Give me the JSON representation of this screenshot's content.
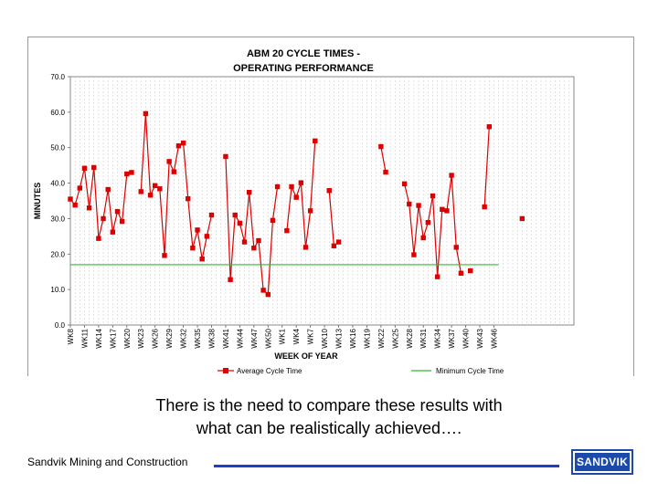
{
  "chart_data": {
    "type": "line",
    "title_lines": [
      "ABM 20 CYCLE TIMES -",
      "OPERATING PERFORMANCE"
    ],
    "xlabel": "WEEK OF YEAR",
    "ylabel": "MINUTES",
    "ylim": [
      0,
      70
    ],
    "y_ticks": [
      "0.0",
      "10.0",
      "20.0",
      "30.0",
      "40.0",
      "50.0",
      "60.0",
      "70.0"
    ],
    "x_tick_labels": [
      "WK8",
      "WK11",
      "WK14",
      "WK17",
      "WK20",
      "WK23",
      "WK26",
      "WK29",
      "WK32",
      "WK35",
      "WK38",
      "WK41",
      "WK44",
      "WK47",
      "WK50",
      "WK1",
      "WK4",
      "WK7",
      "WK10",
      "WK13",
      "WK16",
      "WK19",
      "WK22",
      "WK25",
      "WK28",
      "WK31",
      "WK34",
      "WK37",
      "WK40",
      "WK43",
      "WK46"
    ],
    "x_count": 108,
    "legend": [
      "Average Cycle Time",
      "Minimum Cycle Time"
    ],
    "series": [
      {
        "name": "Average Cycle Time",
        "color": "#dd0000",
        "points": [
          [
            0,
            35.5
          ],
          [
            1,
            33.8
          ],
          [
            2,
            38.6
          ],
          [
            3,
            44.2
          ],
          [
            4,
            33.0
          ],
          [
            5,
            44.4
          ],
          [
            6,
            24.4
          ],
          [
            7,
            30.0
          ],
          [
            8,
            38.2
          ],
          [
            9,
            26.2
          ],
          [
            10,
            32.0
          ],
          [
            11,
            29.2
          ],
          [
            12,
            42.6
          ],
          [
            13,
            43.0
          ],
          [
            15,
            37.6
          ],
          [
            16,
            59.6
          ],
          [
            17,
            36.6
          ],
          [
            18,
            39.3
          ],
          [
            19,
            38.4
          ],
          [
            20,
            19.6
          ],
          [
            21,
            46.1
          ],
          [
            22,
            43.2
          ],
          [
            23,
            50.5
          ],
          [
            24,
            51.3
          ],
          [
            25,
            35.6
          ],
          [
            26,
            21.7
          ],
          [
            27,
            26.8
          ],
          [
            28,
            18.6
          ],
          [
            29,
            25.0
          ],
          [
            30,
            31.0
          ],
          [
            33,
            47.5
          ],
          [
            34,
            12.8
          ],
          [
            35,
            31.0
          ],
          [
            36,
            28.7
          ],
          [
            37,
            23.4
          ],
          [
            38,
            37.4
          ],
          [
            39,
            21.7
          ],
          [
            40,
            23.8
          ],
          [
            41,
            9.8
          ],
          [
            42,
            8.6
          ],
          [
            43,
            29.5
          ],
          [
            44,
            39.0
          ],
          [
            46,
            26.6
          ],
          [
            47,
            39.0
          ],
          [
            48,
            36.0
          ],
          [
            49,
            40.1
          ],
          [
            50,
            21.9
          ],
          [
            51,
            32.2
          ],
          [
            52,
            51.9
          ],
          [
            55,
            37.9
          ],
          [
            56,
            22.3
          ],
          [
            57,
            23.4
          ],
          [
            66,
            50.3
          ],
          [
            67,
            43.1
          ],
          [
            71,
            39.8
          ],
          [
            72,
            34.1
          ],
          [
            73,
            19.8
          ],
          [
            74,
            33.7
          ],
          [
            75,
            24.6
          ],
          [
            76,
            28.9
          ],
          [
            77,
            36.4
          ],
          [
            78,
            13.6
          ],
          [
            79,
            32.6
          ],
          [
            80,
            32.2
          ],
          [
            81,
            42.2
          ],
          [
            82,
            21.9
          ],
          [
            83,
            14.6
          ],
          [
            85,
            15.3
          ],
          [
            88,
            33.3
          ],
          [
            89,
            55.9
          ],
          [
            96,
            30.0
          ]
        ]
      },
      {
        "name": "Minimum Cycle Time",
        "color": "#33bb33",
        "points": [
          [
            0,
            17.0
          ],
          [
            91,
            17.0
          ]
        ]
      }
    ]
  },
  "caption": {
    "line1": "There is the need to compare these results with",
    "line2": "what can be realistically achieved…."
  },
  "footer": {
    "company": "Sandvik Mining and Construction",
    "logo_text": "SANDVIK",
    "rule_color": "#1e3ec8"
  }
}
